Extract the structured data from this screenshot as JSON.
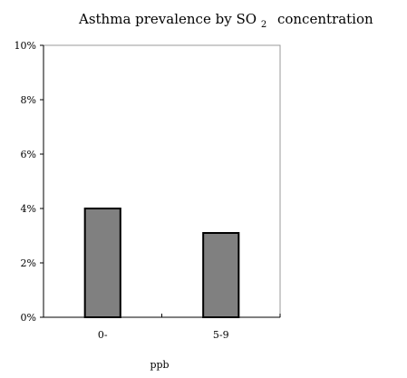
{
  "chart_data": {
    "type": "bar",
    "title_main": "Asthma prevalence by SO",
    "title_sub": "2",
    "title_tail": "concentration",
    "xlabel": "ppb",
    "ylabel": "",
    "categories": [
      "0-",
      "5-9"
    ],
    "values": [
      4.0,
      3.1
    ],
    "ylim": [
      0,
      10
    ],
    "yticks": [
      "0%",
      "2%",
      "4%",
      "6%",
      "8%",
      "10%"
    ],
    "grid": false,
    "bar_color": "#808080",
    "legend": "none"
  }
}
